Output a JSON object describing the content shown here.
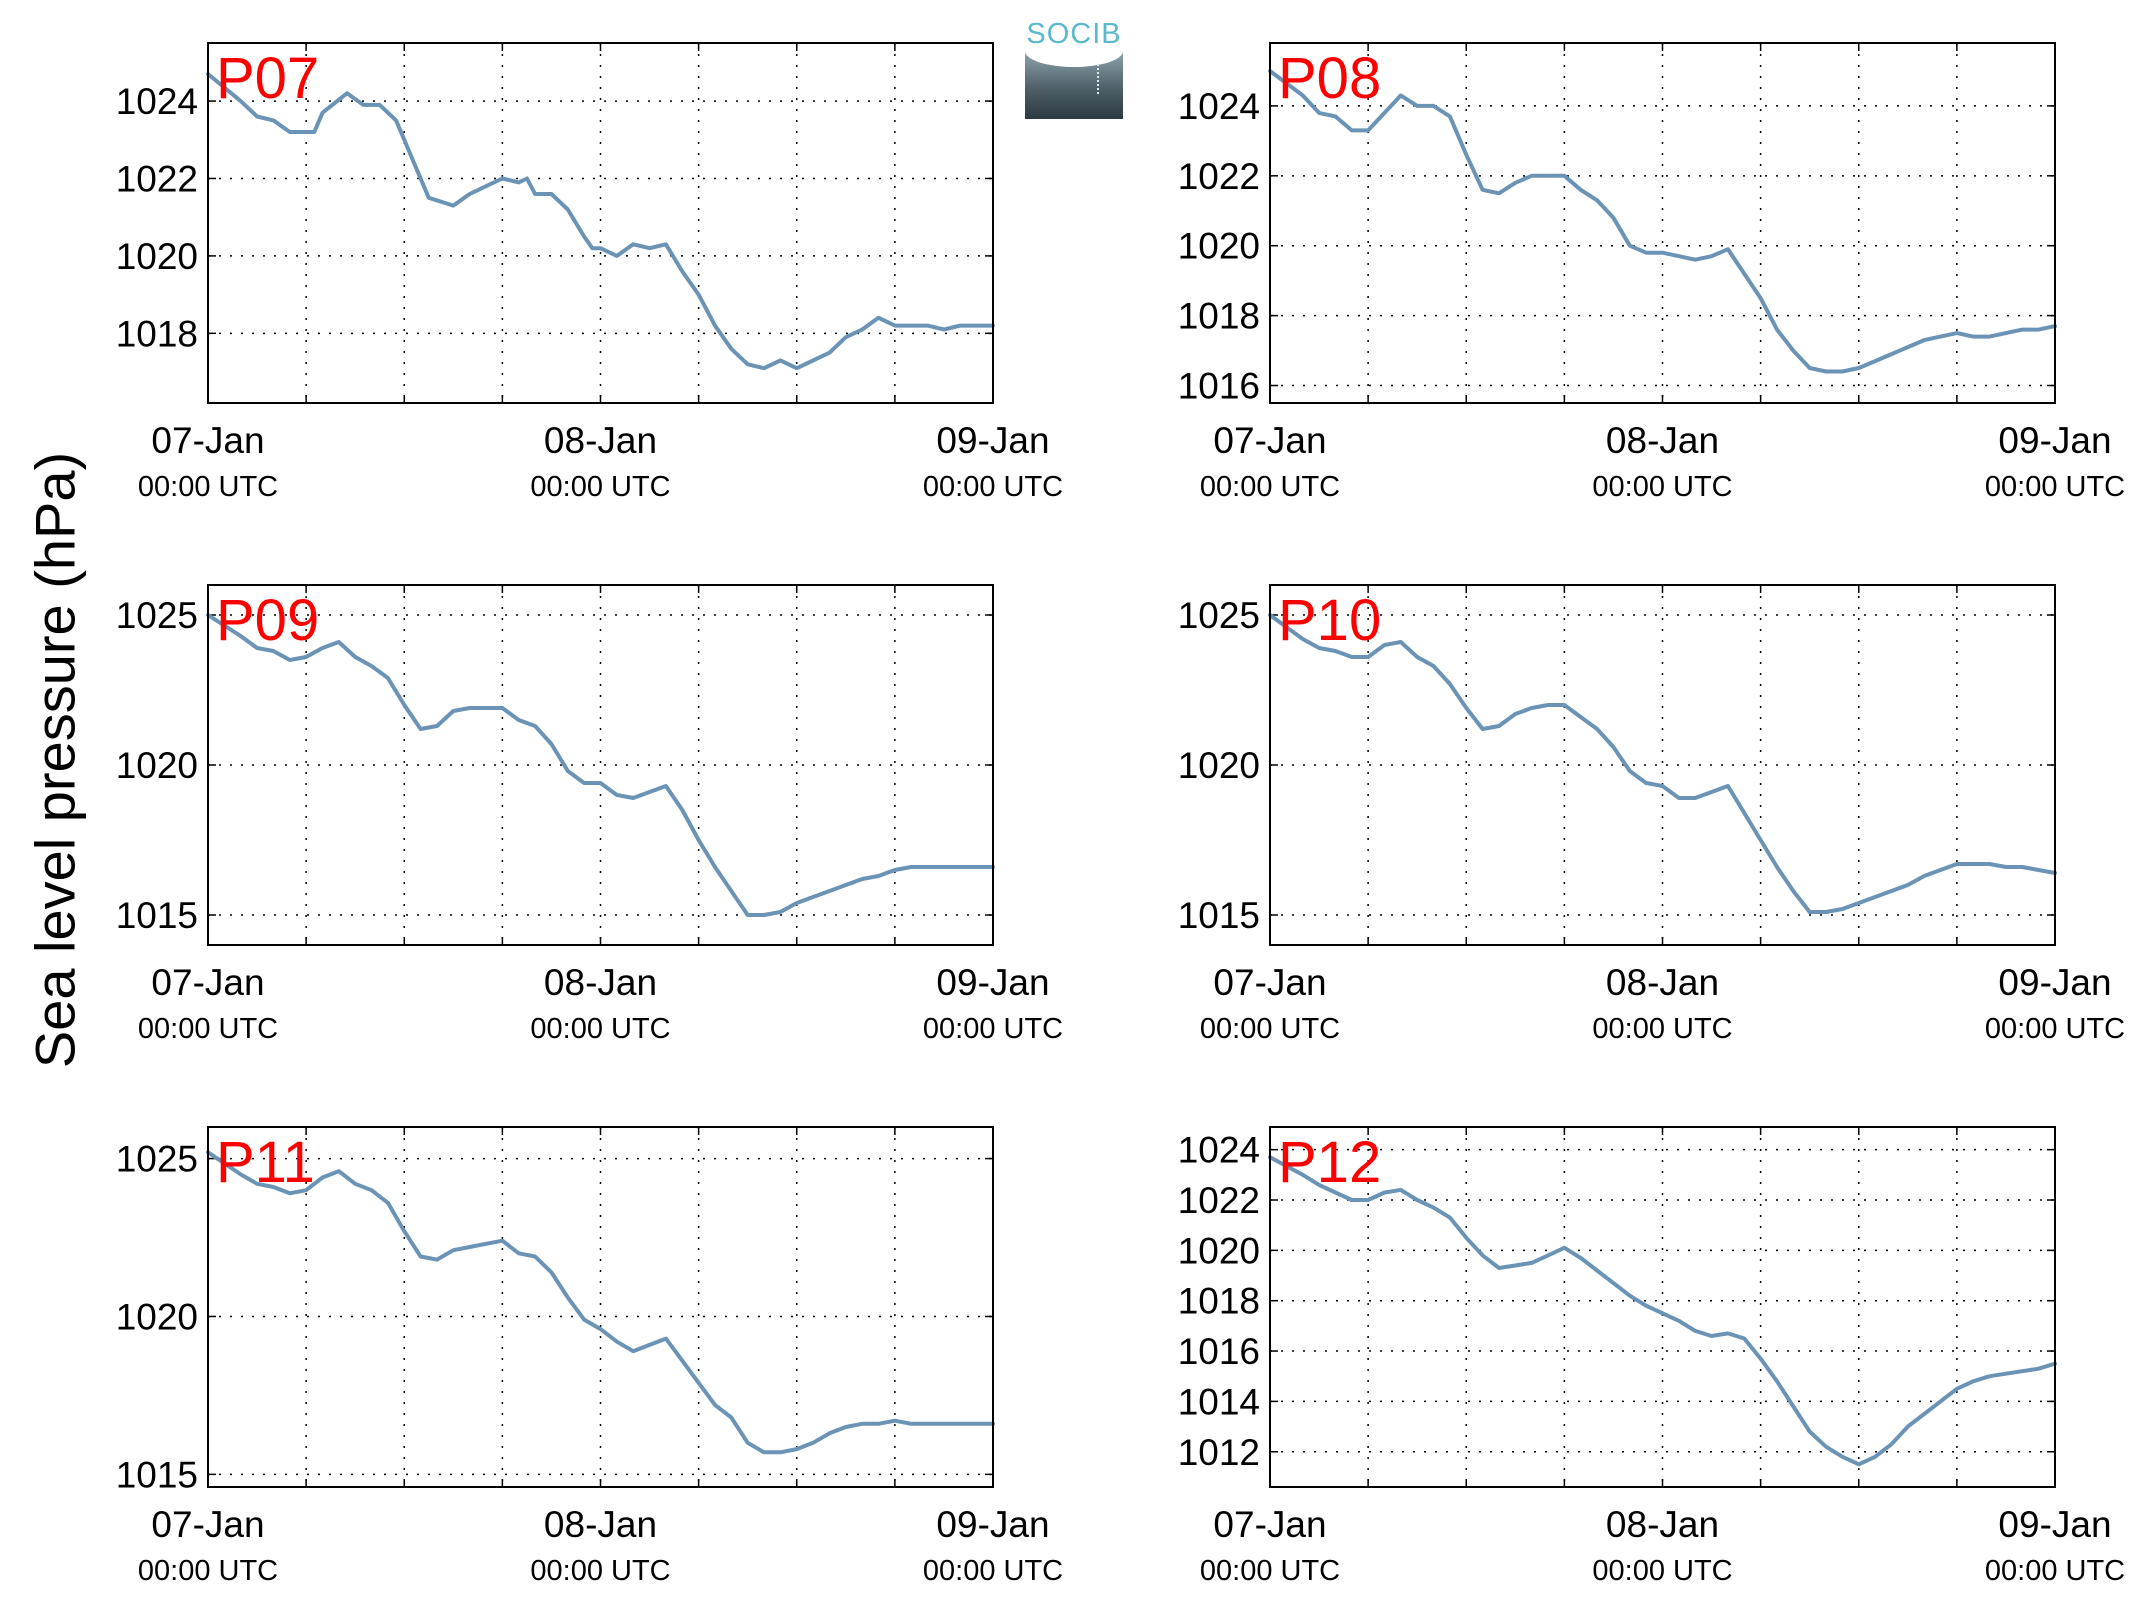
{
  "figure": {
    "ylabel": "Sea level pressure (hPa)",
    "logo_text": "SOCIB"
  },
  "colors": {
    "line": "#6b93b6",
    "station_label": "#ff0000",
    "grid": "#000000"
  },
  "chart_data": [
    {
      "type": "line",
      "station": "P07",
      "xlabel_dates": [
        "07-Jan",
        "08-Jan",
        "09-Jan"
      ],
      "xlabel_time": "00:00 UTC",
      "x_hours_range": [
        0,
        48
      ],
      "ylim": [
        1016.2,
        1025.5
      ],
      "yticks": [
        1018,
        1020,
        1022,
        1024
      ],
      "series": [
        {
          "x_hours": [
            0,
            2,
            3,
            4,
            5,
            6.5,
            7,
            8.5,
            9.5,
            10.5,
            11.5,
            12.5,
            13.5,
            15,
            16,
            17,
            18,
            19,
            19.5,
            20,
            21,
            22,
            23,
            23.5,
            24,
            25,
            26,
            27,
            28,
            29,
            30,
            31,
            32,
            33,
            34,
            35,
            36,
            37,
            38,
            39,
            40,
            41,
            42,
            43,
            44,
            45,
            46,
            47,
            48
          ],
          "values": [
            1024.7,
            1024.0,
            1023.6,
            1023.5,
            1023.2,
            1023.2,
            1023.7,
            1024.2,
            1023.9,
            1023.9,
            1023.5,
            1022.5,
            1021.5,
            1021.3,
            1021.6,
            1021.8,
            1022.0,
            1021.9,
            1022.0,
            1021.6,
            1021.6,
            1021.2,
            1020.5,
            1020.2,
            1020.2,
            1020.0,
            1020.3,
            1020.2,
            1020.3,
            1019.6,
            1019.0,
            1018.2,
            1017.6,
            1017.2,
            1017.1,
            1017.3,
            1017.1,
            1017.3,
            1017.5,
            1017.9,
            1018.1,
            1018.4,
            1018.2,
            1018.2,
            1018.2,
            1018.1,
            1018.2,
            1018.2,
            1018.2
          ]
        }
      ]
    },
    {
      "type": "line",
      "station": "P08",
      "xlabel_dates": [
        "07-Jan",
        "08-Jan",
        "09-Jan"
      ],
      "xlabel_time": "00:00 UTC",
      "x_hours_range": [
        0,
        48
      ],
      "ylim": [
        1015.5,
        1025.8
      ],
      "yticks": [
        1016,
        1018,
        1020,
        1022,
        1024
      ],
      "series": [
        {
          "x_hours": [
            0,
            2,
            3,
            4,
            5,
            6,
            7,
            8,
            9,
            10,
            11,
            12,
            13,
            14,
            15,
            16,
            17,
            18,
            19,
            20,
            21,
            22,
            23,
            24,
            25,
            26,
            27,
            28,
            29,
            30,
            31,
            32,
            33,
            34,
            35,
            36,
            37,
            38,
            39,
            40,
            41,
            42,
            43,
            44,
            45,
            46,
            47,
            48
          ],
          "values": [
            1025.0,
            1024.3,
            1023.8,
            1023.7,
            1023.3,
            1023.3,
            1023.8,
            1024.3,
            1024.0,
            1024.0,
            1023.7,
            1022.6,
            1021.6,
            1021.5,
            1021.8,
            1022.0,
            1022.0,
            1022.0,
            1021.6,
            1021.3,
            1020.8,
            1020.0,
            1019.8,
            1019.8,
            1019.7,
            1019.6,
            1019.7,
            1019.9,
            1019.2,
            1018.5,
            1017.6,
            1017.0,
            1016.5,
            1016.4,
            1016.4,
            1016.5,
            1016.7,
            1016.9,
            1017.1,
            1017.3,
            1017.4,
            1017.5,
            1017.4,
            1017.4,
            1017.5,
            1017.6,
            1017.6,
            1017.7
          ]
        }
      ]
    },
    {
      "type": "line",
      "station": "P09",
      "xlabel_dates": [
        "07-Jan",
        "08-Jan",
        "09-Jan"
      ],
      "xlabel_time": "00:00 UTC",
      "x_hours_range": [
        0,
        48
      ],
      "ylim": [
        1014.0,
        1026.0
      ],
      "yticks": [
        1015,
        1020,
        1025
      ],
      "series": [
        {
          "x_hours": [
            0,
            2,
            3,
            4,
            5,
            6,
            7,
            8,
            9,
            10,
            11,
            12,
            13,
            14,
            15,
            16,
            17,
            18,
            19,
            20,
            21,
            22,
            23,
            24,
            25,
            26,
            27,
            28,
            29,
            30,
            31,
            32,
            33,
            34,
            35,
            36,
            37,
            38,
            39,
            40,
            41,
            42,
            43,
            44,
            45,
            46,
            47,
            48
          ],
          "values": [
            1025.0,
            1024.3,
            1023.9,
            1023.8,
            1023.5,
            1023.6,
            1023.9,
            1024.1,
            1023.6,
            1023.3,
            1022.9,
            1022.0,
            1021.2,
            1021.3,
            1021.8,
            1021.9,
            1021.9,
            1021.9,
            1021.5,
            1021.3,
            1020.7,
            1019.8,
            1019.4,
            1019.4,
            1019.0,
            1018.9,
            1019.1,
            1019.3,
            1018.5,
            1017.5,
            1016.6,
            1015.8,
            1015.0,
            1015.0,
            1015.1,
            1015.4,
            1015.6,
            1015.8,
            1016.0,
            1016.2,
            1016.3,
            1016.5,
            1016.6,
            1016.6,
            1016.6,
            1016.6,
            1016.6,
            1016.6
          ]
        }
      ]
    },
    {
      "type": "line",
      "station": "P10",
      "xlabel_dates": [
        "07-Jan",
        "08-Jan",
        "09-Jan"
      ],
      "xlabel_time": "00:00 UTC",
      "x_hours_range": [
        0,
        48
      ],
      "ylim": [
        1014.0,
        1026.0
      ],
      "yticks": [
        1015,
        1020,
        1025
      ],
      "series": [
        {
          "x_hours": [
            0,
            2,
            3,
            4,
            5,
            6,
            7,
            8,
            9,
            10,
            11,
            12,
            13,
            14,
            15,
            16,
            17,
            18,
            19,
            20,
            21,
            22,
            23,
            24,
            25,
            26,
            27,
            28,
            29,
            30,
            31,
            32,
            33,
            34,
            35,
            36,
            37,
            38,
            39,
            40,
            41,
            42,
            43,
            44,
            45,
            46,
            47,
            48
          ],
          "values": [
            1025.0,
            1024.2,
            1023.9,
            1023.8,
            1023.6,
            1023.6,
            1024.0,
            1024.1,
            1023.6,
            1023.3,
            1022.7,
            1021.9,
            1021.2,
            1021.3,
            1021.7,
            1021.9,
            1022.0,
            1022.0,
            1021.6,
            1021.2,
            1020.6,
            1019.8,
            1019.4,
            1019.3,
            1018.9,
            1018.9,
            1019.1,
            1019.3,
            1018.4,
            1017.5,
            1016.6,
            1015.8,
            1015.1,
            1015.1,
            1015.2,
            1015.4,
            1015.6,
            1015.8,
            1016.0,
            1016.3,
            1016.5,
            1016.7,
            1016.7,
            1016.7,
            1016.6,
            1016.6,
            1016.5,
            1016.4
          ]
        }
      ]
    },
    {
      "type": "line",
      "station": "P11",
      "xlabel_dates": [
        "07-Jan",
        "08-Jan",
        "09-Jan"
      ],
      "xlabel_time": "00:00 UTC",
      "x_hours_range": [
        0,
        48
      ],
      "ylim": [
        1014.6,
        1026.0
      ],
      "yticks": [
        1015,
        1020,
        1025
      ],
      "series": [
        {
          "x_hours": [
            0,
            2,
            3,
            4,
            5,
            6,
            7,
            8,
            9,
            10,
            11,
            12,
            13,
            14,
            15,
            16,
            17,
            18,
            19,
            20,
            21,
            22,
            23,
            24,
            25,
            26,
            27,
            28,
            29,
            30,
            31,
            32,
            33,
            34,
            35,
            36,
            37,
            38,
            39,
            40,
            41,
            42,
            43,
            44,
            45,
            46,
            47,
            48
          ],
          "values": [
            1025.2,
            1024.5,
            1024.2,
            1024.1,
            1023.9,
            1024.0,
            1024.4,
            1024.6,
            1024.2,
            1024.0,
            1023.6,
            1022.7,
            1021.9,
            1021.8,
            1022.1,
            1022.2,
            1022.3,
            1022.4,
            1022.0,
            1021.9,
            1021.4,
            1020.6,
            1019.9,
            1019.6,
            1019.2,
            1018.9,
            1019.1,
            1019.3,
            1018.6,
            1017.9,
            1017.2,
            1016.8,
            1016.0,
            1015.7,
            1015.7,
            1015.8,
            1016.0,
            1016.3,
            1016.5,
            1016.6,
            1016.6,
            1016.7,
            1016.6,
            1016.6,
            1016.6,
            1016.6,
            1016.6,
            1016.6
          ]
        }
      ]
    },
    {
      "type": "line",
      "station": "P12",
      "xlabel_dates": [
        "07-Jan",
        "08-Jan",
        "09-Jan"
      ],
      "xlabel_time": "00:00 UTC",
      "x_hours_range": [
        0,
        48
      ],
      "ylim": [
        1010.6,
        1024.9
      ],
      "yticks": [
        1012,
        1014,
        1016,
        1018,
        1020,
        1022,
        1024
      ],
      "series": [
        {
          "x_hours": [
            0,
            2,
            3,
            4,
            5,
            6,
            7,
            8,
            9,
            10,
            11,
            12,
            13,
            14,
            15,
            16,
            17,
            18,
            19,
            20,
            21,
            22,
            23,
            24,
            25,
            26,
            27,
            28,
            29,
            30,
            31,
            32,
            33,
            34,
            35,
            36,
            37,
            38,
            39,
            40,
            41,
            42,
            43,
            44,
            45,
            46,
            47,
            48
          ],
          "values": [
            1023.7,
            1023.0,
            1022.6,
            1022.3,
            1022.0,
            1022.0,
            1022.3,
            1022.4,
            1022.0,
            1021.7,
            1021.3,
            1020.5,
            1019.8,
            1019.3,
            1019.4,
            1019.5,
            1019.8,
            1020.1,
            1019.7,
            1019.2,
            1018.7,
            1018.2,
            1017.8,
            1017.5,
            1017.2,
            1016.8,
            1016.6,
            1016.7,
            1016.5,
            1015.7,
            1014.8,
            1013.8,
            1012.8,
            1012.2,
            1011.8,
            1011.5,
            1011.8,
            1012.3,
            1013.0,
            1013.5,
            1014.0,
            1014.5,
            1014.8,
            1015.0,
            1015.1,
            1015.2,
            1015.3,
            1015.5
          ]
        }
      ]
    }
  ]
}
